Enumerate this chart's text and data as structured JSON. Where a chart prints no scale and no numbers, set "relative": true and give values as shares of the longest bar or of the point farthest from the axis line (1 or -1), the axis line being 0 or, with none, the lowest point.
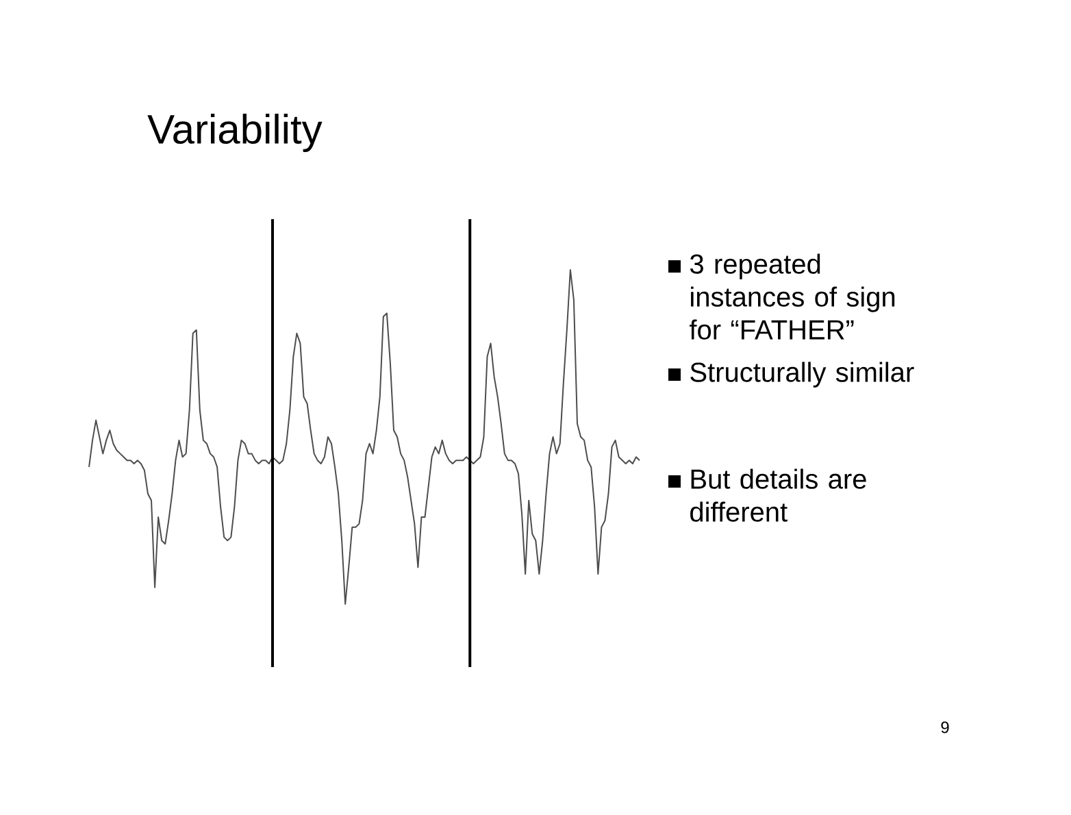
{
  "chart_data": {
    "type": "line",
    "title": "Variability",
    "relative": true,
    "color": "#4d4d4d",
    "categories": [
      null,
      null,
      null,
      null,
      null,
      null,
      null,
      null,
      null,
      null,
      null,
      null,
      null,
      null,
      null,
      null,
      null,
      null,
      null,
      null,
      null,
      null,
      null,
      null,
      null,
      null,
      null,
      null,
      null,
      null,
      null,
      null,
      null,
      null,
      null,
      null,
      null,
      null,
      null,
      null,
      null,
      null,
      null,
      null,
      null,
      null,
      null,
      null,
      null,
      null,
      null,
      null,
      null,
      null,
      null,
      null,
      null,
      null,
      null,
      null,
      null,
      null,
      null,
      null,
      null,
      null,
      null,
      null,
      null,
      null,
      null,
      null,
      null,
      null,
      null,
      null,
      null,
      null,
      null,
      null,
      null,
      null,
      null,
      null,
      null,
      null,
      null,
      null,
      null,
      null,
      null,
      null,
      null,
      null,
      null,
      null,
      null,
      null,
      null,
      null,
      null,
      null,
      null,
      null,
      null,
      null,
      null,
      null,
      null,
      null,
      null,
      null,
      null,
      null,
      null,
      null,
      null,
      null,
      null,
      null,
      null,
      null,
      null,
      null,
      null,
      null,
      null,
      null,
      null,
      null,
      null,
      null,
      null,
      null,
      null,
      null,
      null,
      null,
      null,
      null,
      null,
      null,
      null,
      null,
      null,
      null,
      null,
      null,
      null,
      null,
      null,
      null,
      null,
      null,
      null,
      null,
      null,
      null,
      null,
      null
    ],
    "values": [
      0.41,
      0.49,
      0.55,
      0.5,
      0.45,
      0.49,
      0.52,
      0.48,
      0.46,
      0.45,
      0.44,
      0.43,
      0.43,
      0.42,
      0.43,
      0.42,
      0.4,
      0.33,
      0.31,
      0.05,
      0.26,
      0.19,
      0.18,
      0.25,
      0.33,
      0.43,
      0.49,
      0.44,
      0.45,
      0.58,
      0.81,
      0.82,
      0.58,
      0.49,
      0.48,
      0.45,
      0.44,
      0.41,
      0.29,
      0.2,
      0.19,
      0.2,
      0.29,
      0.43,
      0.49,
      0.48,
      0.45,
      0.45,
      0.43,
      0.42,
      0.43,
      0.43,
      0.42,
      0.44,
      0.43,
      0.42,
      0.43,
      0.48,
      0.58,
      0.74,
      0.81,
      0.78,
      0.62,
      0.6,
      0.52,
      0.45,
      0.43,
      0.42,
      0.44,
      0.5,
      0.48,
      0.41,
      0.33,
      0.19,
      0.0,
      0.11,
      0.23,
      0.23,
      0.24,
      0.31,
      0.45,
      0.48,
      0.45,
      0.52,
      0.62,
      0.86,
      0.87,
      0.72,
      0.52,
      0.5,
      0.45,
      0.43,
      0.38,
      0.31,
      0.24,
      0.11,
      0.26,
      0.26,
      0.35,
      0.44,
      0.47,
      0.45,
      0.49,
      0.45,
      0.43,
      0.42,
      0.43,
      0.43,
      0.43,
      0.44,
      0.43,
      0.42,
      0.43,
      0.44,
      0.5,
      0.74,
      0.78,
      0.68,
      0.62,
      0.54,
      0.45,
      0.43,
      0.43,
      0.42,
      0.39,
      0.27,
      0.09,
      0.31,
      0.21,
      0.19,
      0.09,
      0.19,
      0.33,
      0.45,
      0.5,
      0.45,
      0.48,
      0.66,
      0.82,
      1.0,
      0.91,
      0.54,
      0.5,
      0.49,
      0.43,
      0.41,
      0.29,
      0.09,
      0.23,
      0.25,
      0.33,
      0.47,
      0.49,
      0.44,
      0.43,
      0.42,
      0.43,
      0.42,
      0.44,
      0.43
    ],
    "marker": "none",
    "line_style": "solid",
    "annotations": [
      "3 repeated instances of sign for “FATHER”",
      "Structurally similar",
      "But details are different",
      "9"
    ]
  }
}
